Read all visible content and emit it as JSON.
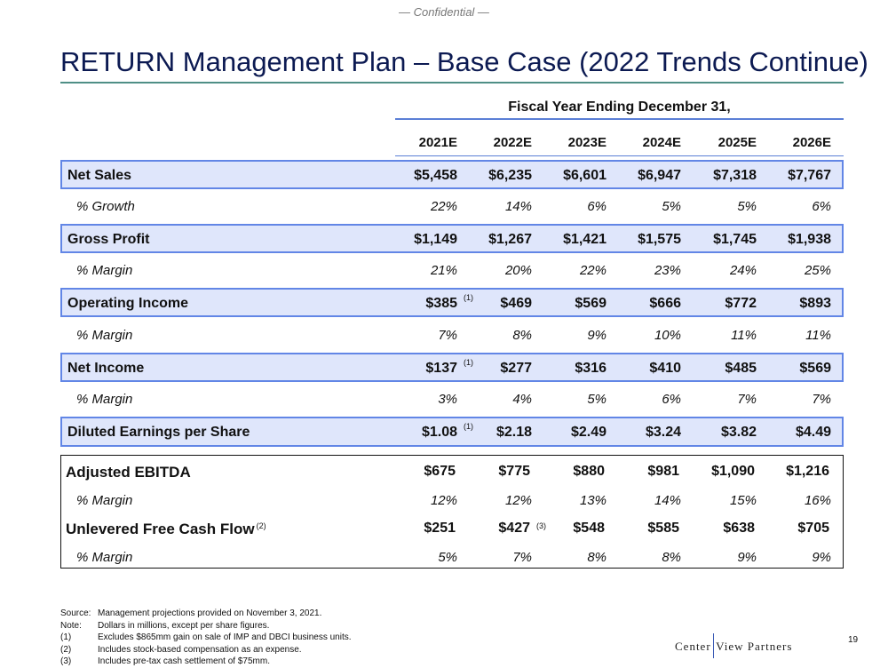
{
  "confidential": "— Confidential —",
  "title": "RETURN Management Plan – Base Case (2022 Trends Continue)",
  "fiscal_header": "Fiscal Year Ending December 31,",
  "years": [
    "2021E",
    "2022E",
    "2023E",
    "2024E",
    "2025E",
    "2026E"
  ],
  "rows": [
    {
      "label": "Net Sales",
      "values": [
        "$5,458",
        "$6,235",
        "$6,601",
        "$6,947",
        "$7,318",
        "$7,767"
      ]
    },
    {
      "label": "% Growth",
      "values": [
        "22%",
        "14%",
        "6%",
        "5%",
        "5%",
        "6%"
      ]
    },
    {
      "label": "Gross Profit",
      "values": [
        "$1,149",
        "$1,267",
        "$1,421",
        "$1,575",
        "$1,745",
        "$1,938"
      ]
    },
    {
      "label": "% Margin",
      "values": [
        "21%",
        "20%",
        "22%",
        "23%",
        "24%",
        "25%"
      ]
    },
    {
      "label": "Operating Income",
      "values": [
        "$385",
        "$469",
        "$569",
        "$666",
        "$772",
        "$893"
      ],
      "footnote": "(1)"
    },
    {
      "label": "% Margin",
      "values": [
        "7%",
        "8%",
        "9%",
        "10%",
        "11%",
        "11%"
      ]
    },
    {
      "label": "Net Income",
      "values": [
        "$137",
        "$277",
        "$316",
        "$410",
        "$485",
        "$569"
      ],
      "footnote": "(1)"
    },
    {
      "label": "% Margin",
      "values": [
        "3%",
        "4%",
        "5%",
        "6%",
        "7%",
        "7%"
      ]
    },
    {
      "label": "Diluted Earnings per Share",
      "values": [
        "$1.08",
        "$2.18",
        "$2.49",
        "$3.24",
        "$3.82",
        "$4.49"
      ],
      "footnote": "(1)"
    }
  ],
  "box_rows": [
    {
      "label": "Adjusted EBITDA",
      "values": [
        "$675",
        "$775",
        "$880",
        "$981",
        "$1,090",
        "$1,216"
      ]
    },
    {
      "label": "% Margin",
      "values": [
        "12%",
        "12%",
        "13%",
        "14%",
        "15%",
        "16%"
      ]
    },
    {
      "label": "Unlevered Free Cash Flow",
      "label_footnote": "(2)",
      "values": [
        "$251",
        "$427",
        "$548",
        "$585",
        "$638",
        "$705"
      ],
      "value_footnote": "(3)"
    },
    {
      "label": "% Margin",
      "values": [
        "5%",
        "7%",
        "8%",
        "8%",
        "9%",
        "9%"
      ]
    }
  ],
  "notes": [
    {
      "key": "Source:",
      "text": "Management projections provided on November 3, 2021."
    },
    {
      "key": "Note:",
      "text": "Dollars in millions, except per share figures."
    },
    {
      "key": "(1)",
      "text": "Excludes $865mm gain on sale of IMP and DBCI business units."
    },
    {
      "key": "(2)",
      "text": "Includes stock-based compensation as an expense."
    },
    {
      "key": "(3)",
      "text": "Includes pre-tax cash settlement of $75mm."
    }
  ],
  "logo": {
    "left": "Center",
    "right": "View Partners"
  },
  "page_number": "19",
  "colors": {
    "title": "#0c1a52",
    "highlight_fill": "#dfe6fb",
    "highlight_border": "#6286e6",
    "title_rule": "#4f8f86"
  }
}
